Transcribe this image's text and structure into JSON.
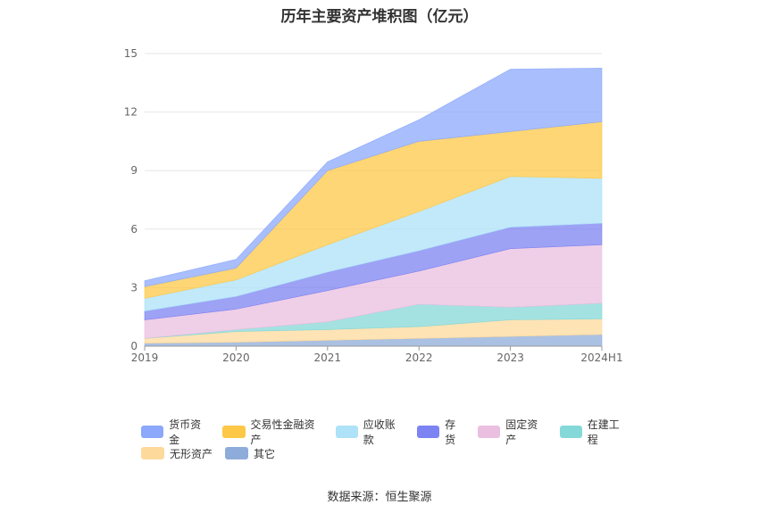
{
  "chart_data": {
    "type": "area",
    "title": "历年主要资产堆积图（亿元）",
    "categories": [
      "2019",
      "2020",
      "2021",
      "2022",
      "2023",
      "2024H1"
    ],
    "stacked": true,
    "ylim": [
      0,
      15
    ],
    "yticks": [
      0,
      3,
      6,
      9,
      12,
      15
    ],
    "xlabel": "",
    "ylabel": "",
    "legend_position": "bottom",
    "series": [
      {
        "name": "其它",
        "color": "#8eacda",
        "values": [
          0.15,
          0.2,
          0.3,
          0.4,
          0.5,
          0.6
        ]
      },
      {
        "name": "无形资产",
        "color": "#fdd99c",
        "values": [
          0.25,
          0.55,
          0.55,
          0.6,
          0.85,
          0.8
        ]
      },
      {
        "name": "在建工程",
        "color": "#85d8d8",
        "values": [
          0.0,
          0.1,
          0.4,
          1.15,
          0.65,
          0.8
        ]
      },
      {
        "name": "固定资产",
        "color": "#eabfdf",
        "values": [
          0.95,
          1.05,
          1.6,
          1.7,
          3.0,
          3.0
        ]
      },
      {
        "name": "存货",
        "color": "#7c83f2",
        "values": [
          0.45,
          0.65,
          0.95,
          1.05,
          1.1,
          1.1
        ]
      },
      {
        "name": "应收账款",
        "color": "#aee2f8",
        "values": [
          0.65,
          0.85,
          1.4,
          2.0,
          2.6,
          2.3
        ]
      },
      {
        "name": "交易性金融资产",
        "color": "#fdc847",
        "values": [
          0.6,
          0.6,
          3.8,
          3.6,
          2.3,
          2.9
        ]
      },
      {
        "name": "货币资金",
        "color": "#8ca8fb",
        "values": [
          0.3,
          0.45,
          0.45,
          1.1,
          3.2,
          2.75
        ]
      }
    ],
    "legend": [
      "货币资金",
      "交易性金融资产",
      "应收账款",
      "存货",
      "固定资产",
      "在建工程",
      "无形资产",
      "其它"
    ]
  },
  "source": "数据来源：恒生聚源"
}
